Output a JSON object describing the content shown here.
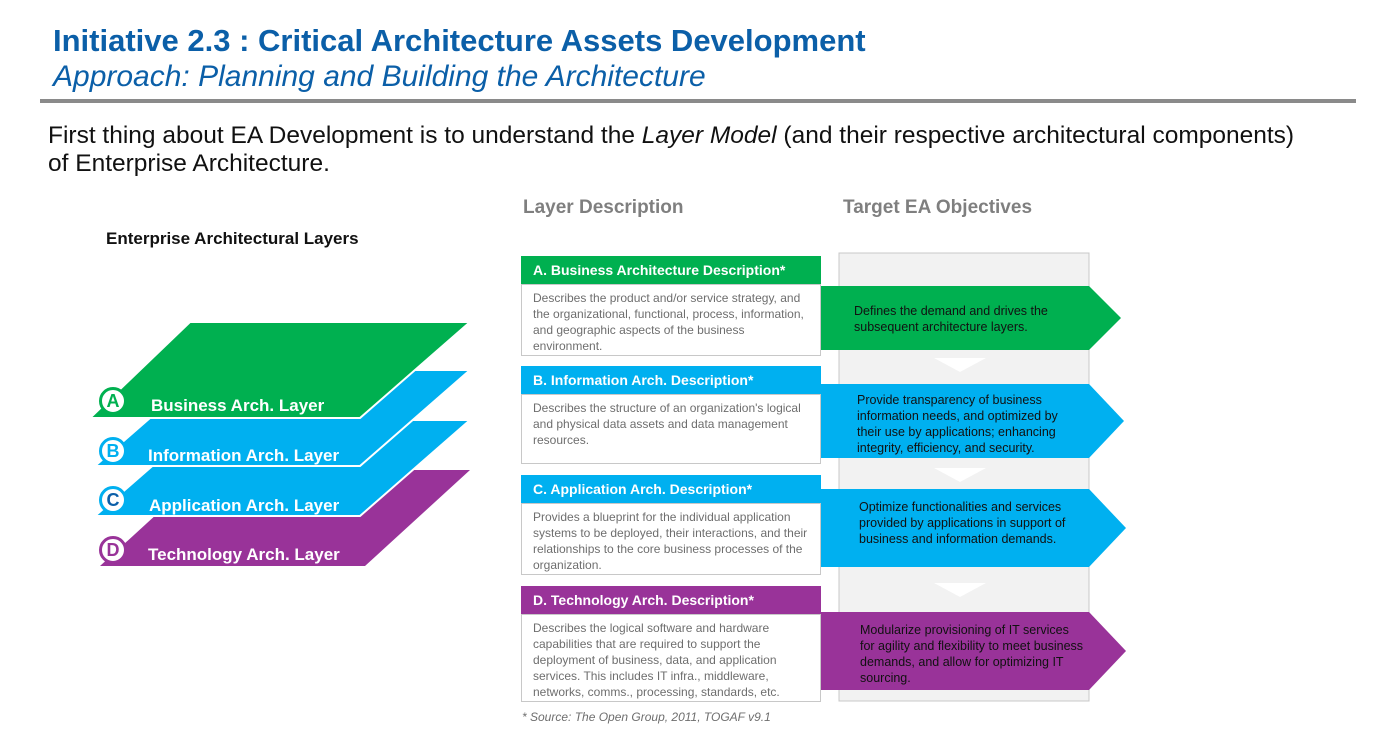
{
  "header": {
    "title": "Initiative 2.3 : Critical Architecture Assets Development",
    "subtitle": "Approach: Planning and Building the Architecture"
  },
  "intro": {
    "before": "First thing about EA Development is to understand the ",
    "emphasis": "Layer Model",
    "after": " (and their respective architectural components) of Enterprise Architecture."
  },
  "columns": {
    "layer_description": "Layer Description",
    "target_objectives": "Target EA Objectives"
  },
  "layers_title": "Enterprise Architectural  Layers",
  "colors": {
    "business": "#00b050",
    "information": "#00b0f0",
    "application": "#00b0f0",
    "technology": "#993399",
    "title_blue": "#0b5fa8"
  },
  "layers": [
    {
      "letter": "A",
      "label": "Business Arch. Layer"
    },
    {
      "letter": "B",
      "label": "Information Arch. Layer"
    },
    {
      "letter": "C",
      "label": "Application Arch. Layer"
    },
    {
      "letter": "D",
      "label": "Technology Arch. Layer"
    }
  ],
  "descriptions": [
    {
      "heading": "A. Business Architecture Description*",
      "text": "Describes the product and/or service strategy, and the organizational, functional, process, information, and geographic aspects of the business environment."
    },
    {
      "heading": "B. Information Arch. Description*",
      "text": "Describes the structure of an organization's logical and physical data assets and data management resources."
    },
    {
      "heading": "C. Application Arch. Description*",
      "text": "Provides a blueprint for the individual application systems to be deployed, their interactions, and their relationships to the core business processes of the organization."
    },
    {
      "heading": "D. Technology Arch. Description*",
      "text": "Describes the logical software and hardware capabilities that are required to support the deployment of business, data, and application services. This includes IT infra., middleware, networks, comms., processing, standards, etc."
    }
  ],
  "objectives": [
    "Defines the demand and drives the subsequent architecture layers.",
    "Provide transparency of business information needs, and optimized by their use by applications; enhancing integrity, efficiency, and security.",
    "Optimize functionalities and services provided by applications in support of business and information demands.",
    "Modularize provisioning of IT services for agility and flexibility to meet business demands, and allow for optimizing IT sourcing."
  ],
  "source": "* Source: The Open Group, 2011, TOGAF v9.1"
}
